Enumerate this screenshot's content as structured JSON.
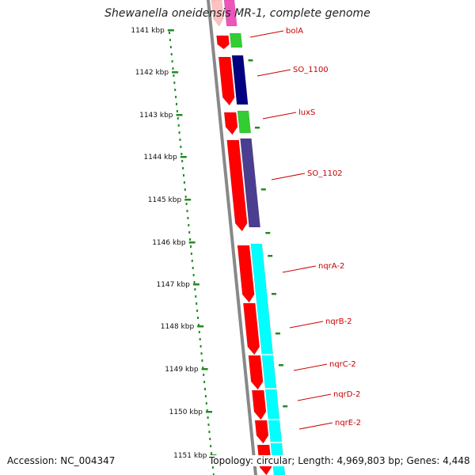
{
  "title": "Shewanella oneidensis MR-1, complete genome",
  "ruler": {
    "labels": [
      "1141 kbp",
      "1142 kbp",
      "1143 kbp",
      "1144 kbp",
      "1145 kbp",
      "1146 kbp",
      "1147 kbp",
      "1148 kbp",
      "1149 kbp",
      "1150 kbp",
      "1151 kbp"
    ]
  },
  "genes": [
    {
      "label": "bolA"
    },
    {
      "label": "SO_1100"
    },
    {
      "label": "luxS"
    },
    {
      "label": "SO_1102"
    },
    {
      "label": "nqrA-2"
    },
    {
      "label": "nqrB-2"
    },
    {
      "label": "nqrC-2"
    },
    {
      "label": "nqrD-2"
    },
    {
      "label": "nqrE-2"
    }
  ],
  "colors": {
    "cds": "#ff0000",
    "genes": [
      "#33cc33",
      "#000080",
      "#33cc33",
      "#4b3d8f",
      "#00ffff",
      "#00ffff",
      "#00ffff",
      "#00ffff",
      "#00ffff"
    ],
    "ruler": "#228b22",
    "backbone": "#888888",
    "label": "#cc0000"
  },
  "footer": {
    "accession": "Accession: NC_004347",
    "summary": "Topology: circular; Length: 4,969,803 bp; Genes: 4,448"
  }
}
